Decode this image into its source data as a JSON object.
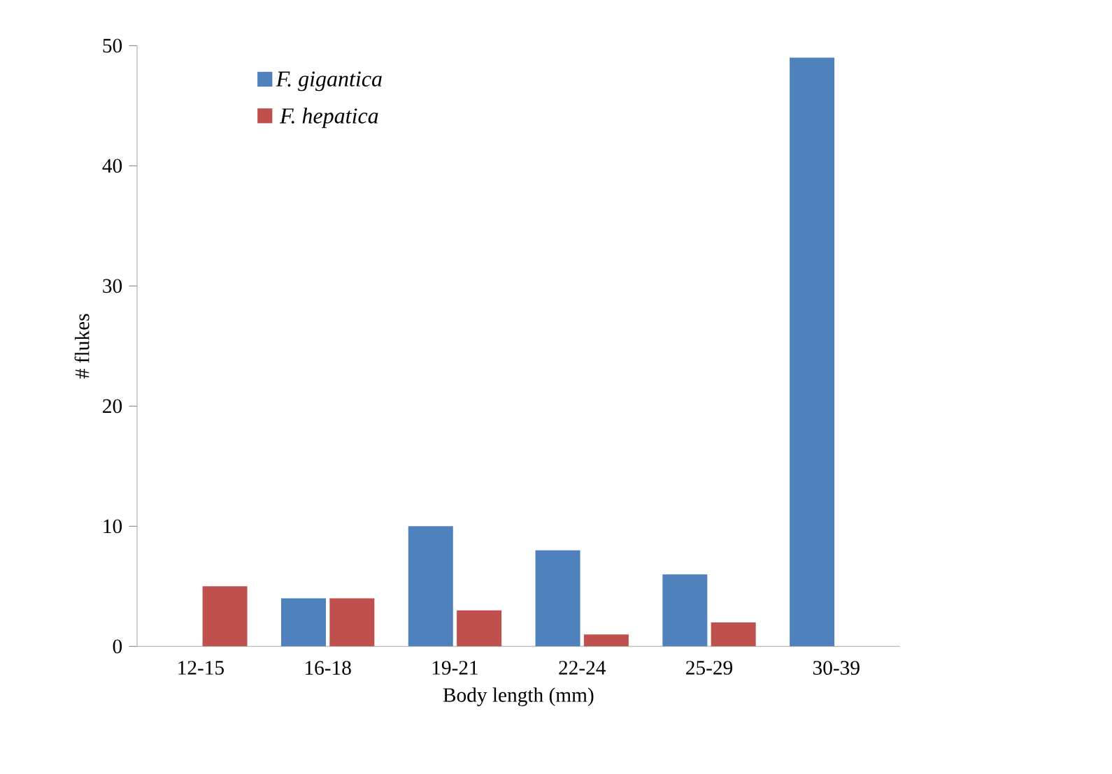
{
  "chart_data": {
    "type": "bar",
    "xlabel": "Body length (mm)",
    "ylabel": "# flukes",
    "categories": [
      "12-15",
      "16-18",
      "19-21",
      "22-24",
      "25-29",
      "30-39"
    ],
    "series": [
      {
        "name": "F. gigantica",
        "color": "#4f81bd",
        "values": [
          null,
          4,
          10,
          8,
          6,
          49
        ]
      },
      {
        "name": "F. hepatica",
        "color": "#c0504d",
        "values": [
          5,
          4,
          3,
          1,
          2,
          null
        ]
      }
    ],
    "ylim": [
      0,
      50
    ],
    "yticks": [
      0,
      10,
      20,
      30,
      40,
      50
    ],
    "grid": false,
    "legend": "top left"
  }
}
